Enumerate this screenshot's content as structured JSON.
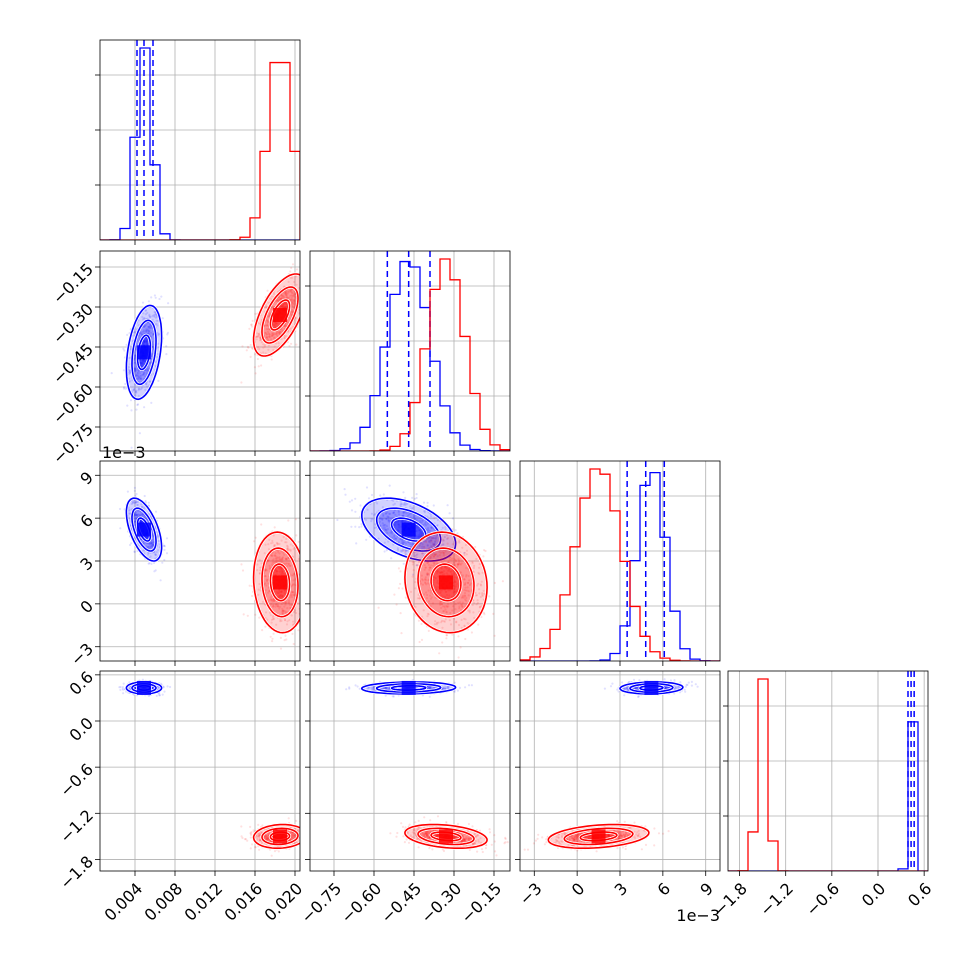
{
  "chart_data": {
    "type": "corner",
    "title": "",
    "parameters": [
      {
        "index": 0,
        "range": [
          0.0005,
          0.0205
        ],
        "ticks": [
          "0.004",
          "0.008",
          "0.012",
          "0.016",
          "0.020"
        ],
        "tick_values": [
          0.004,
          0.008,
          0.012,
          0.016,
          0.02
        ],
        "offset_label": ""
      },
      {
        "index": 1,
        "range": [
          -0.84,
          -0.09
        ],
        "ticks": [
          "−0.75",
          "−0.60",
          "−0.45",
          "−0.30",
          "−0.15"
        ],
        "tick_values": [
          -0.75,
          -0.6,
          -0.45,
          -0.3,
          -0.15
        ],
        "offset_label": ""
      },
      {
        "index": 2,
        "range": [
          -4.0,
          10.0
        ],
        "ticks": [
          "−3",
          "0",
          "3",
          "6",
          "9"
        ],
        "tick_values": [
          -3,
          0,
          3,
          6,
          9
        ],
        "offset_label": "1e−3"
      },
      {
        "index": 3,
        "range": [
          -1.95,
          0.65
        ],
        "ticks": [
          "−1.8",
          "−1.2",
          "−0.6",
          "0.0",
          "0.6"
        ],
        "tick_values": [
          -1.8,
          -1.2,
          -0.6,
          0.0,
          0.6
        ],
        "offset_label": ""
      }
    ],
    "series": [
      {
        "color": "#0000ff",
        "means": [
          0.0049,
          -0.47,
          5.2,
          0.43
        ],
        "sds": [
          0.0008,
          0.08,
          1.0,
          0.035
        ],
        "correlations": {
          "1-0": 0.35,
          "2-0": -0.55,
          "2-1": -0.45,
          "3-0": 0.0,
          "3-1": 0.1,
          "3-2": 0.1
        },
        "quantiles": [
          [
            0.0042,
            0.0049,
            0.0058
          ],
          [
            -0.55,
            -0.47,
            -0.39
          ],
          [
            3.5,
            4.8,
            6.1
          ],
          [
            0.39,
            0.43,
            0.47
          ]
        ]
      },
      {
        "color": "#ff0000",
        "means": [
          0.0185,
          -0.33,
          1.5,
          -1.5
        ],
        "sds": [
          0.0012,
          0.07,
          1.6,
          0.07
        ],
        "correlations": {
          "1-0": 0.6,
          "2-0": -0.1,
          "2-1": -0.1,
          "3-0": 0.1,
          "3-1": -0.3,
          "3-2": 0.3
        },
        "quantiles": []
      }
    ],
    "grid": true,
    "legend": "none"
  }
}
